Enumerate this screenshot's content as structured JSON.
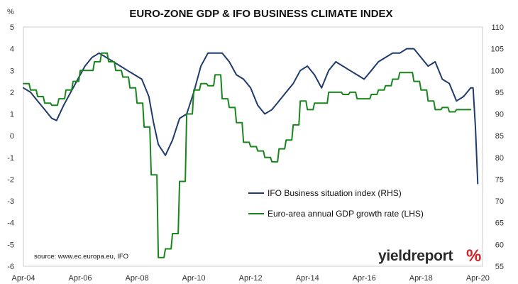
{
  "chart_data": {
    "type": "line",
    "title": "EURO-ZONE GDP & IFO BUSINESS CLIMATE INDEX",
    "left_axis": {
      "unit": "%",
      "ylim": [
        -6,
        5
      ],
      "ticks": [
        "5",
        "4",
        "3",
        "2",
        "1",
        "0",
        "-1",
        "-2",
        "-3",
        "-4",
        "-5",
        "-6"
      ]
    },
    "right_axis": {
      "ylim": [
        55,
        110
      ],
      "ticks": [
        "110",
        "105",
        "100",
        "95",
        "90",
        "85",
        "80",
        "75",
        "70",
        "65",
        "60",
        "55"
      ]
    },
    "x_ticks": [
      "Apr-04",
      "Apr-06",
      "Apr-08",
      "Apr-10",
      "Apr-12",
      "Apr-14",
      "Apr-16",
      "Apr-18",
      "Apr-20"
    ],
    "xlim": [
      "2004-04",
      "2020-06"
    ],
    "grid": false,
    "legend_position": "lower-right inside",
    "series": [
      {
        "name": "IFO Business situation index (RHS)",
        "axis": "right",
        "color": "#1f3a6e",
        "points": [
          [
            "2004-04",
            96
          ],
          [
            "2004-07",
            95
          ],
          [
            "2004-10",
            93
          ],
          [
            "2005-01",
            91
          ],
          [
            "2005-04",
            89
          ],
          [
            "2005-06",
            88.5
          ],
          [
            "2005-09",
            92
          ],
          [
            "2005-12",
            95
          ],
          [
            "2006-03",
            98
          ],
          [
            "2006-06",
            101
          ],
          [
            "2006-09",
            103
          ],
          [
            "2006-12",
            104
          ],
          [
            "2007-03",
            103
          ],
          [
            "2007-06",
            102
          ],
          [
            "2007-09",
            101
          ],
          [
            "2007-12",
            100
          ],
          [
            "2008-03",
            99
          ],
          [
            "2008-06",
            98
          ],
          [
            "2008-09",
            94
          ],
          [
            "2008-11",
            88
          ],
          [
            "2009-01",
            83
          ],
          [
            "2009-04",
            80.5
          ],
          [
            "2009-07",
            84
          ],
          [
            "2009-10",
            89
          ],
          [
            "2010-01",
            90
          ],
          [
            "2010-04",
            95
          ],
          [
            "2010-07",
            101
          ],
          [
            "2010-10",
            104
          ],
          [
            "2011-01",
            104
          ],
          [
            "2011-04",
            104
          ],
          [
            "2011-07",
            102
          ],
          [
            "2011-10",
            99
          ],
          [
            "2012-01",
            98
          ],
          [
            "2012-04",
            96
          ],
          [
            "2012-07",
            92
          ],
          [
            "2012-10",
            90
          ],
          [
            "2013-01",
            91
          ],
          [
            "2013-04",
            93
          ],
          [
            "2013-07",
            95
          ],
          [
            "2013-10",
            97
          ],
          [
            "2014-01",
            100
          ],
          [
            "2014-04",
            101
          ],
          [
            "2014-07",
            99
          ],
          [
            "2014-10",
            96
          ],
          [
            "2015-01",
            100
          ],
          [
            "2015-04",
            102
          ],
          [
            "2015-07",
            101
          ],
          [
            "2015-10",
            100
          ],
          [
            "2016-01",
            99
          ],
          [
            "2016-04",
            98
          ],
          [
            "2016-07",
            100
          ],
          [
            "2016-10",
            102
          ],
          [
            "2017-01",
            103
          ],
          [
            "2017-04",
            104
          ],
          [
            "2017-07",
            104
          ],
          [
            "2017-10",
            105
          ],
          [
            "2018-01",
            105
          ],
          [
            "2018-04",
            103
          ],
          [
            "2018-07",
            101
          ],
          [
            "2018-10",
            102
          ],
          [
            "2019-01",
            98
          ],
          [
            "2019-04",
            97
          ],
          [
            "2019-07",
            93
          ],
          [
            "2019-10",
            94
          ],
          [
            "2020-01",
            96
          ],
          [
            "2020-02",
            96
          ],
          [
            "2020-03",
            87
          ],
          [
            "2020-04",
            74
          ]
        ]
      },
      {
        "name": "Euro-area annual GDP growth rate (LHS)",
        "axis": "left",
        "color": "#18861c",
        "points": [
          [
            "2004-04",
            2.4
          ],
          [
            "2004-07",
            2.1
          ],
          [
            "2004-10",
            1.8
          ],
          [
            "2005-01",
            1.5
          ],
          [
            "2005-04",
            1.4
          ],
          [
            "2005-07",
            1.7
          ],
          [
            "2005-10",
            2.1
          ],
          [
            "2006-01",
            2.5
          ],
          [
            "2006-04",
            3.0
          ],
          [
            "2006-07",
            3.0
          ],
          [
            "2006-10",
            3.4
          ],
          [
            "2007-01",
            3.8
          ],
          [
            "2007-04",
            3.4
          ],
          [
            "2007-07",
            3.0
          ],
          [
            "2007-10",
            2.7
          ],
          [
            "2008-01",
            2.2
          ],
          [
            "2008-04",
            1.5
          ],
          [
            "2008-07",
            0.4
          ],
          [
            "2008-10",
            -1.8
          ],
          [
            "2009-01",
            -5.6
          ],
          [
            "2009-04",
            -5.2
          ],
          [
            "2009-07",
            -4.5
          ],
          [
            "2009-10",
            -2.1
          ],
          [
            "2010-01",
            1.0
          ],
          [
            "2010-04",
            2.1
          ],
          [
            "2010-07",
            2.4
          ],
          [
            "2010-10",
            2.3
          ],
          [
            "2011-01",
            2.8
          ],
          [
            "2011-04",
            1.7
          ],
          [
            "2011-07",
            1.3
          ],
          [
            "2011-10",
            0.6
          ],
          [
            "2012-01",
            -0.3
          ],
          [
            "2012-04",
            -0.5
          ],
          [
            "2012-07",
            -0.7
          ],
          [
            "2012-10",
            -1.0
          ],
          [
            "2013-01",
            -1.2
          ],
          [
            "2013-04",
            -0.6
          ],
          [
            "2013-07",
            -0.2
          ],
          [
            "2013-10",
            0.5
          ],
          [
            "2014-01",
            1.6
          ],
          [
            "2014-04",
            1.2
          ],
          [
            "2014-07",
            1.5
          ],
          [
            "2014-10",
            1.5
          ],
          [
            "2015-01",
            2.0
          ],
          [
            "2015-04",
            2.0
          ],
          [
            "2015-07",
            1.9
          ],
          [
            "2015-10",
            2.0
          ],
          [
            "2016-01",
            1.7
          ],
          [
            "2016-04",
            1.7
          ],
          [
            "2016-07",
            1.9
          ],
          [
            "2016-10",
            2.1
          ],
          [
            "2017-01",
            2.3
          ],
          [
            "2017-04",
            2.6
          ],
          [
            "2017-07",
            2.9
          ],
          [
            "2017-10",
            2.9
          ],
          [
            "2018-01",
            2.5
          ],
          [
            "2018-04",
            2.1
          ],
          [
            "2018-07",
            1.6
          ],
          [
            "2018-10",
            1.2
          ],
          [
            "2019-01",
            1.3
          ],
          [
            "2019-04",
            1.1
          ],
          [
            "2019-07",
            1.2
          ],
          [
            "2019-10",
            1.2
          ],
          [
            "2020-01",
            1.2
          ]
        ]
      }
    ]
  },
  "source_note": "source: www.ec.europa.eu, IFO",
  "logo": {
    "text": "yieldreport",
    "symbol": "%"
  }
}
